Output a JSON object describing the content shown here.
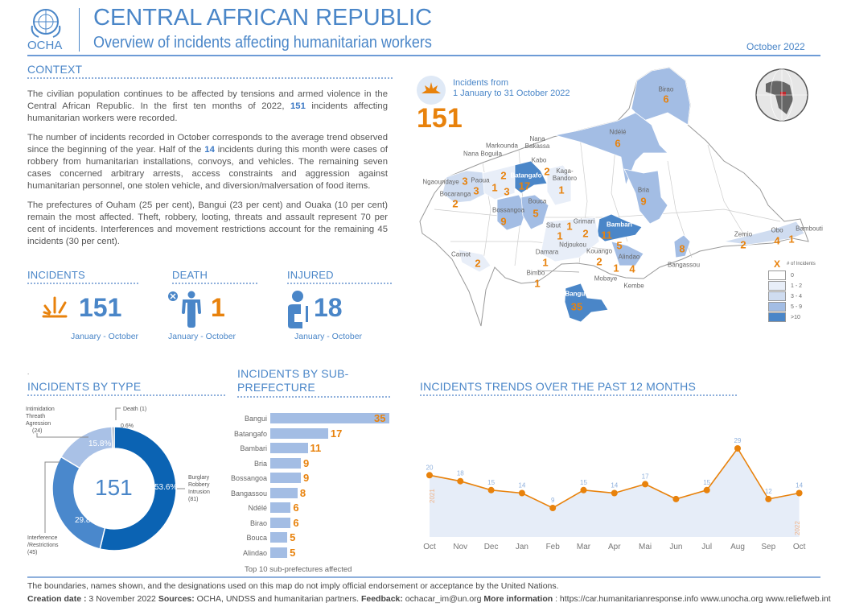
{
  "header": {
    "logo_text": "OCHA",
    "title": "CENTRAL AFRICAN REPUBLIC",
    "subtitle": "Overview of incidents affecting humanitarian workers",
    "date": "October 2022"
  },
  "context": {
    "title": "CONTEXT",
    "p1": [
      "The civilian population continues to be affected by tensions and armed violence in the Central African Republic. In the first ten months of 2022, ",
      "151",
      " incidents affecting humanitarian workers were recorded."
    ],
    "p2": [
      "The number of incidents recorded in October corresponds to the average trend observed since the beginning of the year. Half of the ",
      "14",
      " incidents during this month were cases of robbery from humanitarian installations, convoys, and vehicles. The remaining seven cases concerned arbitrary arrests, access constraints and aggression against humanitarian personnel, one stolen vehicle, and diversion/malversation of food items."
    ],
    "p3": "The prefectures of Ouham (25 per cent), Bangui (23 per cent) and Ouaka (10 per cent) remain the most affected. Theft, robbery, looting, threats and assault represent 70 per cent of incidents. Interferences and movement restrictions account for the remaining 45 incidents (30 per cent)."
  },
  "kpis": [
    {
      "title": "INCIDENTS",
      "value": "151",
      "period": "January - October",
      "icon": "explosion-icon"
    },
    {
      "title": "DEATH",
      "value": "1",
      "period": "January - October",
      "icon": "person-dead-icon"
    },
    {
      "title": "INJURED",
      "value": "18",
      "period": "January - October",
      "icon": "injured-person-icon"
    }
  ],
  "map": {
    "caption_line1": "Incidents from",
    "caption_line2": "1 January to 31 October 2022",
    "total": "151",
    "legend": {
      "marker": "X",
      "title": "# of Incidents",
      "classes": [
        {
          "label": "0",
          "color": "#ffffff"
        },
        {
          "label": "1 - 2",
          "color": "#e8eef8"
        },
        {
          "label": "3 - 4",
          "color": "#cfdcf0"
        },
        {
          "label": "5 - 9",
          "color": "#a3bde4"
        },
        {
          "label": ">10",
          "color": "#4a86c8"
        }
      ]
    },
    "areas": [
      {
        "name": "Birao",
        "count": "6"
      },
      {
        "name": "Ndélé",
        "count": "6"
      },
      {
        "name": "Batangafo",
        "count": "17"
      },
      {
        "name": "Bambari",
        "count": "11"
      },
      {
        "name": "Bangui",
        "count": "35"
      },
      {
        "name": "Bria",
        "count": "9"
      },
      {
        "name": "Bossangoa",
        "count": "9"
      },
      {
        "name": "Bouca",
        "count": "5"
      },
      {
        "name": "Kabo",
        "count": "2"
      },
      {
        "name": "Kaga-Bandoro",
        "count": "1"
      },
      {
        "name": "Markounda",
        "count": "2"
      },
      {
        "name": "Nana Boguila",
        "count": "1"
      },
      {
        "name": "Nana Bakassa",
        "count": "3"
      },
      {
        "name": "Ngaoundaye",
        "count": "3"
      },
      {
        "name": "Paoua",
        "count": "3"
      },
      {
        "name": "Bocaranga",
        "count": "2"
      },
      {
        "name": "Sibut",
        "count": "1"
      },
      {
        "name": "Grimari",
        "count": "2"
      },
      {
        "name": "Ndjoukou",
        "count": "1"
      },
      {
        "name": "Damara",
        "count": "1"
      },
      {
        "name": "Kouango",
        "count": "2"
      },
      {
        "name": "Alindao",
        "count": "5"
      },
      {
        "name": "Mobaye",
        "count": "1"
      },
      {
        "name": "Kembe",
        "count": "4"
      },
      {
        "name": "Bangassou",
        "count": "8"
      },
      {
        "name": "Zemio",
        "count": "2"
      },
      {
        "name": "Obo",
        "count": "4"
      },
      {
        "name": "Bambouti",
        "count": "1"
      },
      {
        "name": "Carnot",
        "count": "2"
      },
      {
        "name": "Bimbo",
        "count": "1"
      }
    ]
  },
  "chart_data": [
    {
      "type": "pie",
      "title": "INCIDENTS BY TYPE",
      "center_label": "151",
      "slices": [
        {
          "label": "Burglary Robbery Intrusion",
          "count": "(81)",
          "value": 53.6,
          "pct": "53.6%",
          "color": "#0b63b3"
        },
        {
          "label": "Interference /Restrictions",
          "count": "(45)",
          "value": 29.8,
          "pct": "29.8%",
          "color": "#4a88cc"
        },
        {
          "label": "Intimidation Threath Agression",
          "count": "(24)",
          "value": 15.8,
          "pct": "15.8%",
          "color": "#a9c1e6"
        },
        {
          "label": "Death",
          "count": "(1)",
          "value": 0.6,
          "pct": "0.6%",
          "color": "#8595ab"
        }
      ]
    },
    {
      "type": "bar",
      "title": "INCIDENTS BY SUB-PREFECTURE",
      "caption": "Top 10 sub-prefectures affected",
      "categories": [
        "Bangui",
        "Batangafo",
        "Bambari",
        "Bria",
        "Bossangoa",
        "Bangassou",
        "Ndélé",
        "Birao",
        "Bouca",
        "Alindao"
      ],
      "values": [
        35,
        17,
        11,
        9,
        9,
        8,
        6,
        6,
        5,
        5
      ],
      "bar_color": "#a3bde4",
      "label_color": "#e8820c"
    },
    {
      "type": "line",
      "title": "INCIDENTS TRENDS OVER THE PAST 12 MONTHS",
      "categories": [
        "Oct",
        "Nov",
        "Dec",
        "Jan",
        "Feb",
        "Mar",
        "Apr",
        "Mai",
        "Jun",
        "Jul",
        "Aug",
        "Sep",
        "Oct"
      ],
      "values": [
        20,
        18,
        15,
        14,
        9,
        15,
        14,
        17,
        12,
        15,
        29,
        12,
        14
      ],
      "labels": [
        "20",
        "18",
        "15",
        "14",
        "9",
        "15",
        "14",
        "17",
        "",
        "15",
        "29",
        "12",
        "14"
      ],
      "year_start": "2021",
      "year_end": "2022",
      "line_color": "#e8820c",
      "fill_color": "#e6edf8"
    }
  ],
  "footer": {
    "disclaimer": "The boundaries, names shown, and the designations used on this map do not imply official endorsement or acceptance by the United Nations.",
    "creation_label": "Creation date :",
    "creation": " 3 November 2022 ",
    "sources_label": "Sources:",
    "sources": " OCHA, UNDSS and humanitarian partners. ",
    "feedback_label": "Feedback:",
    "feedback": " ochacar_im@un.org ",
    "more_label": "More information",
    "more": " : https://car.humanitarianresponse.info www.unocha.org www.reliefweb.int"
  }
}
